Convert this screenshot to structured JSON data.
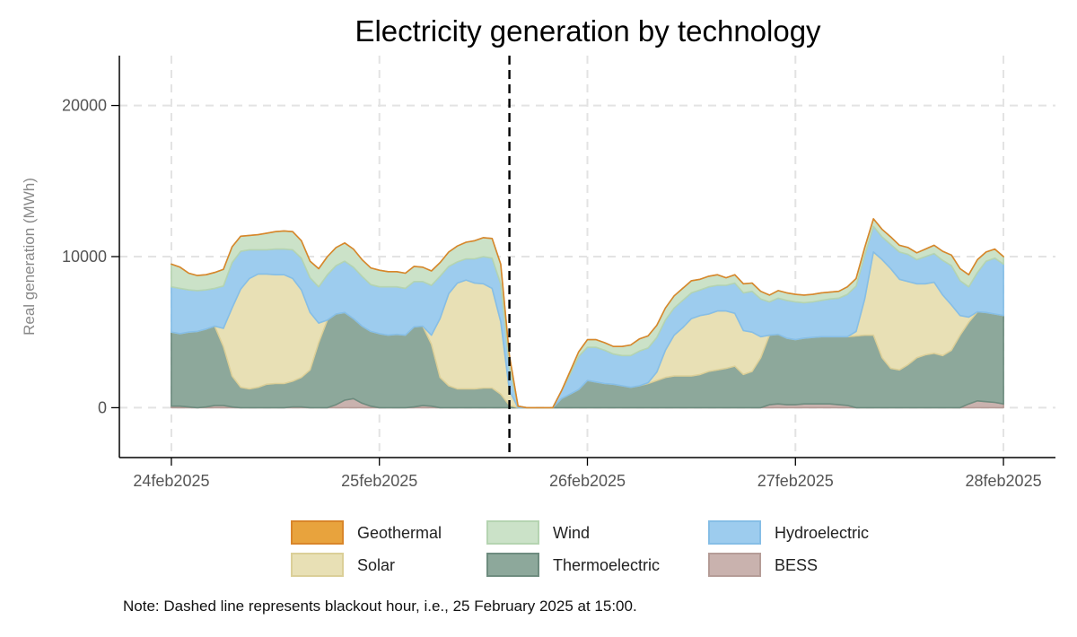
{
  "chart_data": {
    "type": "area",
    "stacked": true,
    "title": "Electricity generation by technology",
    "xlabel": "",
    "ylabel": "Real generation (MWh)",
    "x_tick_labels": [
      "24feb2025",
      "25feb2025",
      "26feb2025",
      "27feb2025",
      "28feb2025"
    ],
    "y_ticks": [
      0,
      10000,
      20000
    ],
    "ylim": [
      -3300,
      23300
    ],
    "xlim": [
      -0.25,
      4.25
    ],
    "x_unit": "days since 24feb2025 00:00",
    "grid": true,
    "blackout_x": 1.625,
    "note": "Note: Dashed line represents blackout hour, i.e., 25 February 2025 at 15:00.",
    "x": [
      0,
      0.0417,
      0.0833,
      0.125,
      0.1667,
      0.2083,
      0.25,
      0.2917,
      0.3333,
      0.375,
      0.4167,
      0.4583,
      0.5,
      0.5417,
      0.5833,
      0.625,
      0.6667,
      0.7083,
      0.75,
      0.7917,
      0.8333,
      0.875,
      0.9167,
      0.9583,
      1,
      1.0417,
      1.0833,
      1.125,
      1.1667,
      1.2083,
      1.25,
      1.2917,
      1.3333,
      1.375,
      1.4167,
      1.4583,
      1.5,
      1.5417,
      1.5833,
      1.625,
      1.6667,
      1.7083,
      1.75,
      1.7917,
      1.8333,
      1.875,
      1.9167,
      1.9583,
      2,
      2.0417,
      2.0833,
      2.125,
      2.1667,
      2.2083,
      2.25,
      2.2917,
      2.3333,
      2.375,
      2.4167,
      2.4583,
      2.5,
      2.5417,
      2.5833,
      2.625,
      2.6667,
      2.7083,
      2.75,
      2.7917,
      2.8333,
      2.875,
      2.9167,
      2.9583,
      3,
      3.0417,
      3.0833,
      3.125,
      3.1667,
      3.2083,
      3.25,
      3.2917,
      3.3333,
      3.375,
      3.4167,
      3.4583,
      3.5,
      3.5417,
      3.5833,
      3.625,
      3.6667,
      3.7083,
      3.75,
      3.7917,
      3.8333,
      3.875,
      3.9167,
      3.9583,
      4
    ],
    "legend": {
      "position": "bottom",
      "items": [
        {
          "name": "Geothermal",
          "color": "#E8A33D",
          "stroke": "#D9862A"
        },
        {
          "name": "Wind",
          "color": "#CBE2C8",
          "stroke": "#B5D4B1"
        },
        {
          "name": "Hydroelectric",
          "color": "#9DCCEE",
          "stroke": "#86BEE6"
        },
        {
          "name": "Solar",
          "color": "#E8E0B5",
          "stroke": "#DBCF98"
        },
        {
          "name": "Thermoelectric",
          "color": "#8DA89B",
          "stroke": "#6E8C7F"
        },
        {
          "name": "BESS",
          "color": "#C9B2AE",
          "stroke": "#B59C97"
        }
      ]
    },
    "series": [
      {
        "name": "BESS",
        "color": "#C9B2AE",
        "stroke": "#B59C97",
        "values": [
          100,
          100,
          50,
          0,
          50,
          150,
          150,
          50,
          0,
          0,
          0,
          0,
          0,
          0,
          50,
          50,
          0,
          0,
          0,
          200,
          500,
          600,
          300,
          100,
          0,
          0,
          0,
          0,
          50,
          150,
          100,
          0,
          0,
          0,
          0,
          0,
          0,
          0,
          0,
          0,
          0,
          0,
          0,
          0,
          0,
          0,
          0,
          0,
          0,
          0,
          0,
          0,
          0,
          0,
          0,
          0,
          0,
          0,
          0,
          0,
          0,
          0,
          0,
          0,
          0,
          0,
          0,
          0,
          0,
          200,
          250,
          200,
          200,
          250,
          250,
          250,
          250,
          200,
          150,
          0,
          0,
          0,
          0,
          0,
          0,
          0,
          0,
          0,
          0,
          0,
          0,
          0,
          250,
          450,
          400,
          350,
          250
        ]
      },
      {
        "name": "Thermoelectric",
        "color": "#8DA89B",
        "stroke": "#6E8C7F",
        "values": [
          4900,
          4800,
          4950,
          5050,
          5150,
          5250,
          3900,
          2050,
          1350,
          1250,
          1350,
          1550,
          1600,
          1600,
          1700,
          1950,
          2500,
          4300,
          5800,
          6000,
          5800,
          5300,
          5100,
          4950,
          4900,
          4800,
          4850,
          4800,
          5300,
          5250,
          4100,
          2000,
          1450,
          1250,
          1250,
          1250,
          1300,
          1300,
          900,
          150,
          0,
          0,
          0,
          0,
          0,
          600,
          900,
          1200,
          1800,
          1700,
          1600,
          1550,
          1450,
          1350,
          1450,
          1600,
          1800,
          2000,
          2100,
          2100,
          2100,
          2200,
          2400,
          2500,
          2600,
          2750,
          2200,
          2400,
          3300,
          4600,
          4600,
          4400,
          4300,
          4350,
          4400,
          4450,
          4450,
          4500,
          4550,
          4750,
          4800,
          4800,
          3300,
          2600,
          2500,
          2850,
          3300,
          3500,
          3600,
          3450,
          3800,
          4800,
          5400,
          5900,
          5900,
          5850,
          5850
        ]
      },
      {
        "name": "Solar",
        "color": "#E8E0B5",
        "stroke": "#DBCF98",
        "values": [
          0,
          0,
          0,
          0,
          0,
          0,
          1200,
          4500,
          6500,
          7300,
          7500,
          7300,
          7200,
          7200,
          6800,
          5800,
          3800,
          1300,
          0,
          0,
          0,
          0,
          0,
          0,
          0,
          0,
          0,
          0,
          0,
          0,
          600,
          3900,
          6100,
          7000,
          7200,
          7000,
          6900,
          6600,
          4800,
          1000,
          0,
          0,
          0,
          0,
          0,
          0,
          0,
          0,
          0,
          0,
          0,
          0,
          0,
          0,
          0,
          50,
          550,
          1800,
          2700,
          3200,
          3800,
          3900,
          3800,
          3900,
          3800,
          3500,
          2900,
          2600,
          1400,
          0,
          0,
          0,
          0,
          0,
          0,
          0,
          0,
          0,
          0,
          300,
          2400,
          5500,
          6500,
          6600,
          6000,
          5500,
          4900,
          4700,
          4700,
          4000,
          3000,
          1300,
          350,
          0,
          0,
          0,
          0
        ]
      },
      {
        "name": "Hydroelectric",
        "color": "#9DCCEE",
        "stroke": "#86BEE6",
        "values": [
          3000,
          3000,
          2800,
          2700,
          2600,
          2500,
          2800,
          3000,
          2500,
          1900,
          1600,
          1600,
          1700,
          1700,
          1900,
          2100,
          2300,
          2400,
          3000,
          3200,
          3400,
          3400,
          3300,
          3100,
          3100,
          3200,
          3150,
          3100,
          3000,
          2950,
          3300,
          2800,
          1800,
          1400,
          1400,
          1600,
          1800,
          2000,
          2500,
          1500,
          100,
          0,
          0,
          0,
          0,
          500,
          1300,
          2200,
          2200,
          2300,
          2200,
          2000,
          2000,
          2100,
          2300,
          2300,
          2300,
          2000,
          1800,
          1800,
          1700,
          1700,
          1800,
          1700,
          1700,
          2000,
          2500,
          2700,
          2500,
          2200,
          2400,
          2500,
          2500,
          2350,
          2350,
          2400,
          2500,
          2550,
          2800,
          3000,
          2900,
          1700,
          1500,
          1600,
          1800,
          1800,
          1600,
          1800,
          1900,
          2300,
          2600,
          2300,
          2000,
          2600,
          3400,
          3700,
          3400
        ]
      },
      {
        "name": "Wind",
        "color": "#CBE2C8",
        "stroke": "#B5D4B1",
        "values": [
          1500,
          1400,
          1100,
          1000,
          1000,
          1050,
          1100,
          1050,
          1000,
          950,
          1000,
          1100,
          1150,
          1200,
          1200,
          1150,
          1100,
          1200,
          1200,
          1200,
          1200,
          1200,
          1100,
          1100,
          1100,
          1000,
          1000,
          1000,
          1000,
          950,
          950,
          900,
          950,
          1050,
          1100,
          1200,
          1250,
          1300,
          1300,
          800,
          0,
          0,
          0,
          0,
          0,
          0,
          200,
          300,
          500,
          500,
          500,
          500,
          600,
          700,
          800,
          800,
          800,
          800,
          800,
          800,
          800,
          700,
          700,
          700,
          500,
          550,
          600,
          550,
          500,
          450,
          500,
          500,
          500,
          500,
          500,
          500,
          450,
          450,
          500,
          500,
          500,
          500,
          500,
          500,
          450,
          450,
          450,
          500,
          550,
          600,
          700,
          800,
          800,
          850,
          600,
          600,
          500
        ]
      },
      {
        "name": "Geothermal",
        "color": "#E8A33D",
        "stroke": "#D9862A",
        "values": [
          0,
          0,
          0,
          0,
          0,
          0,
          0,
          0,
          0,
          0,
          0,
          0,
          0,
          0,
          0,
          0,
          0,
          0,
          0,
          0,
          0,
          0,
          0,
          0,
          0,
          0,
          0,
          0,
          0,
          0,
          0,
          0,
          0,
          0,
          0,
          0,
          0,
          0,
          0,
          0,
          0,
          0,
          0,
          0,
          0,
          0,
          0,
          0,
          0,
          0,
          0,
          0,
          0,
          0,
          0,
          0,
          0,
          0,
          0,
          0,
          0,
          0,
          0,
          0,
          0,
          0,
          0,
          0,
          0,
          0,
          0,
          0,
          0,
          0,
          0,
          0,
          0,
          0,
          0,
          0,
          0,
          0,
          0,
          0,
          0,
          0,
          0,
          0,
          0,
          0,
          0,
          0,
          0,
          0,
          0,
          0,
          0
        ]
      }
    ]
  }
}
